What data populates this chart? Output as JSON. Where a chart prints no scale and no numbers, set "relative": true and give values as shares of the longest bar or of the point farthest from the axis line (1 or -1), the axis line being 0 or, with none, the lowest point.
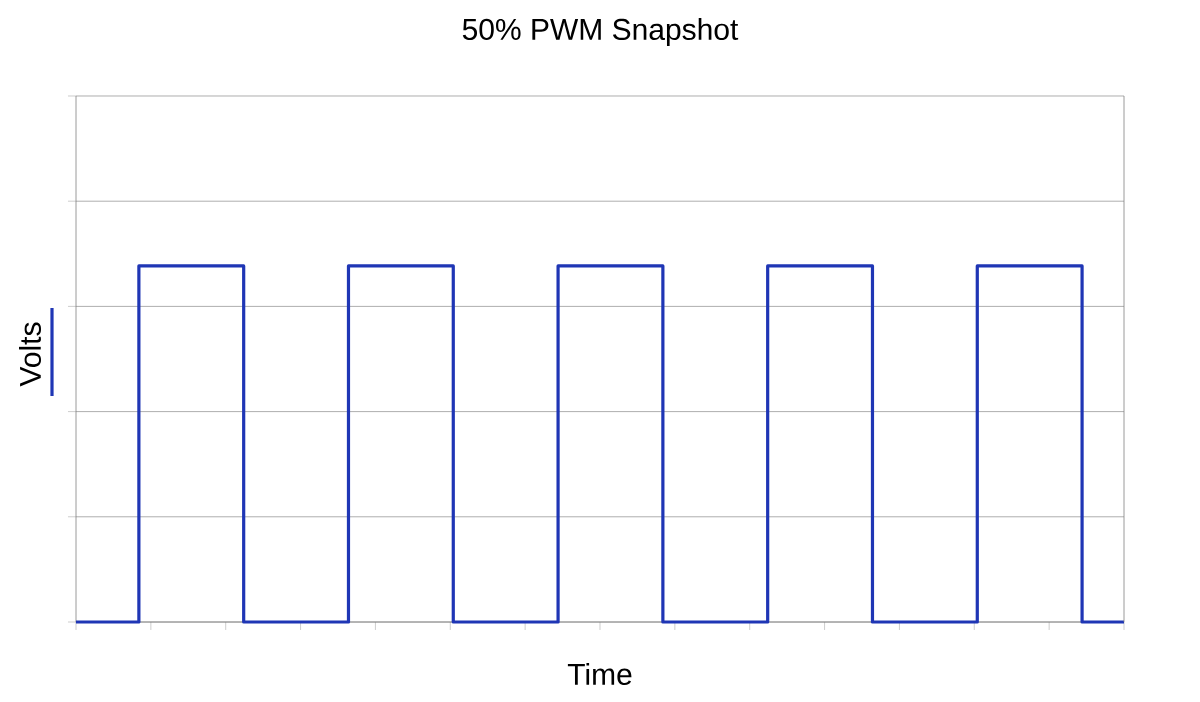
{
  "chart_data": {
    "type": "step",
    "title": "50% PWM Snapshot",
    "xlabel": "Time",
    "relative": true,
    "grid": "y",
    "legend": "left",
    "categories": [
      null,
      null,
      null,
      null,
      null,
      null,
      null,
      null,
      null,
      null,
      null,
      null,
      null,
      null,
      null,
      null,
      null,
      null,
      null,
      null,
      null,
      null,
      null,
      null,
      null,
      null,
      null,
      null,
      null,
      null,
      null,
      null,
      null,
      null,
      null,
      null,
      null,
      null,
      null,
      null,
      null,
      null,
      null,
      null,
      null,
      null,
      null,
      null,
      null,
      null,
      null
    ],
    "series": [
      {
        "name": "Volts",
        "color": "#1f36b5",
        "values": [
          0,
          0,
          0,
          1,
          1,
          1,
          1,
          1,
          0,
          0,
          0,
          0,
          0,
          1,
          1,
          1,
          1,
          1,
          0,
          0,
          0,
          0,
          0,
          1,
          1,
          1,
          1,
          1,
          0,
          0,
          0,
          0,
          0,
          1,
          1,
          1,
          1,
          1,
          0,
          0,
          0,
          0,
          0,
          1,
          1,
          1,
          1,
          1,
          0,
          0,
          0
        ]
      }
    ]
  }
}
